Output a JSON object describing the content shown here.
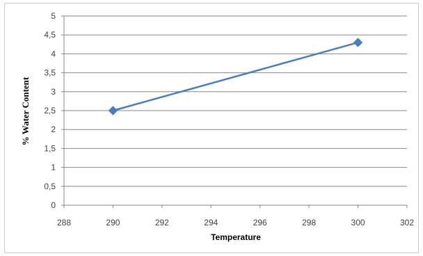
{
  "chart_data": {
    "type": "line",
    "x": [
      290,
      300
    ],
    "series": [
      {
        "values": [
          2.5,
          4.3
        ],
        "color": "#4a7ebb"
      }
    ],
    "xlabel": "Temperature",
    "ylabel": "% Water Content",
    "xlim": [
      288,
      302
    ],
    "ylim": [
      0,
      5
    ],
    "xticks": [
      "288",
      "290",
      "292",
      "294",
      "296",
      "298",
      "300",
      "302"
    ],
    "yticks": [
      "0",
      "0,5",
      "1",
      "1,5",
      "2",
      "2,5",
      "3",
      "3,5",
      "4",
      "4,5",
      "5"
    ],
    "grid": "horizontal",
    "legend": "none",
    "marker": "diamond"
  }
}
